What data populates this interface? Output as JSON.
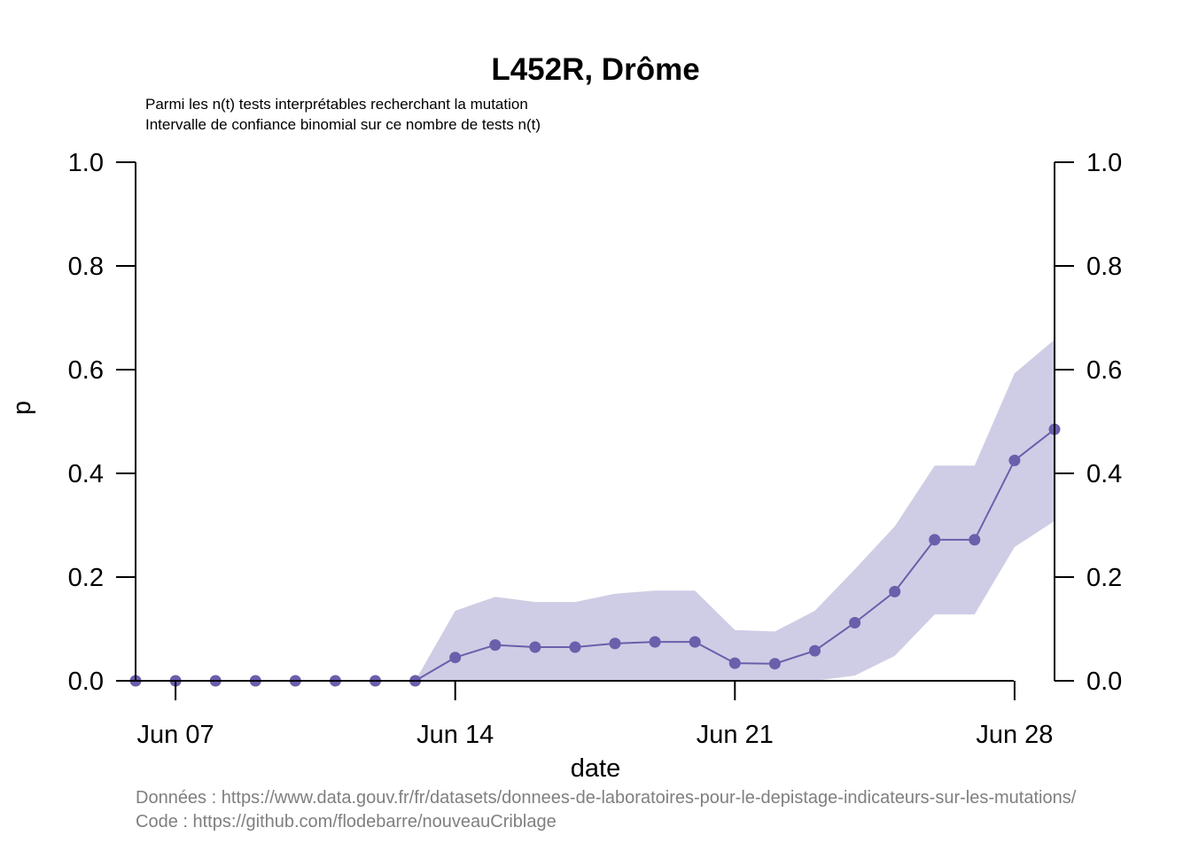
{
  "chart_data": {
    "type": "line",
    "title": "L452R, Drôme",
    "subtitle_lines": [
      "Parmi les n(t) tests interprétables recherchant la mutation",
      "Intervalle de confiance binomial sur ce nombre de tests n(t)"
    ],
    "xlabel": "date",
    "ylabel": "p",
    "ylim": [
      0,
      1
    ],
    "y_ticks": [
      "0.0",
      "0.2",
      "0.4",
      "0.6",
      "0.8",
      "1.0"
    ],
    "y_tick_values": [
      0,
      0.2,
      0.4,
      0.6,
      0.8,
      1.0
    ],
    "x_ticks": [
      {
        "label": "Jun 07",
        "date": "2021-06-07"
      },
      {
        "label": "Jun 14",
        "date": "2021-06-14"
      },
      {
        "label": "Jun 21",
        "date": "2021-06-21"
      },
      {
        "label": "Jun 28",
        "date": "2021-06-28"
      }
    ],
    "x": [
      "2021-06-06",
      "2021-06-07",
      "2021-06-08",
      "2021-06-09",
      "2021-06-10",
      "2021-06-11",
      "2021-06-12",
      "2021-06-13",
      "2021-06-14",
      "2021-06-15",
      "2021-06-16",
      "2021-06-17",
      "2021-06-18",
      "2021-06-19",
      "2021-06-20",
      "2021-06-21",
      "2021-06-22",
      "2021-06-23",
      "2021-06-24",
      "2021-06-25",
      "2021-06-26",
      "2021-06-27",
      "2021-06-28",
      "2021-06-29"
    ],
    "xlim": [
      "2021-06-06",
      "2021-06-29"
    ],
    "series": [
      {
        "values": [
          0,
          0,
          0,
          0,
          0,
          0,
          0,
          0,
          0.045,
          0.069,
          0.065,
          0.065,
          0.072,
          0.075,
          0.075,
          0.034,
          0.033,
          0.058,
          0.112,
          0.172,
          0.272,
          0.272,
          0.425,
          0.485
        ],
        "lower": [
          0,
          0,
          0,
          0,
          0,
          0,
          0,
          0,
          0,
          0,
          0,
          0,
          0,
          0,
          0,
          0,
          0,
          0,
          0.01,
          0.048,
          0.128,
          0.128,
          0.258,
          0.308
        ],
        "upper": [
          0,
          0,
          0,
          0,
          0,
          0,
          0,
          0,
          0.135,
          0.162,
          0.152,
          0.152,
          0.168,
          0.174,
          0.174,
          0.098,
          0.095,
          0.135,
          0.215,
          0.298,
          0.415,
          0.415,
          0.593,
          0.658
        ]
      }
    ],
    "line_color": "#6a5fab",
    "band_color": "#cfcde5",
    "grid": false,
    "right_axis": true
  },
  "footer": {
    "data_source": "Données : https://www.data.gouv.fr/fr/datasets/donnees-de-laboratoires-pour-le-depistage-indicateurs-sur-les-mutations/",
    "code_source": "Code : https://github.com/flodebarre/nouveauCriblage"
  }
}
